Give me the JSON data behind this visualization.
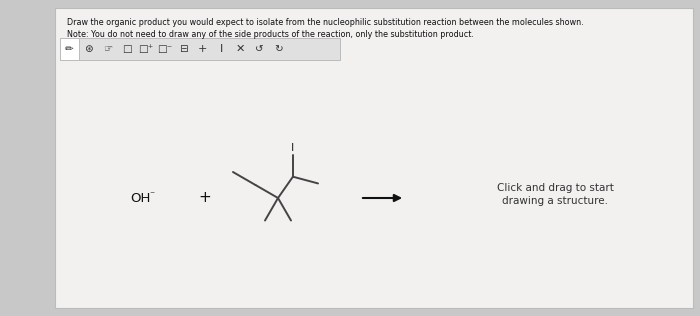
{
  "title_line1": "Draw the organic product you would expect to isolate from the nucleophilic substitution reaction between the molecules shown.",
  "title_line2": "Note: You do not need to draw any of the side products of the reaction, only the substitution product.",
  "bg_color": "#c8c8c8",
  "panel_color": "#ebebeb",
  "toolbar_bg": "#e0e0e0",
  "toolbar_border": "#bbbbbb",
  "text_color": "#111111",
  "bond_color": "#444444",
  "oh_text": "OH",
  "plus_text": "+",
  "arrow_color": "#111111",
  "click_line1": "Click and drag to start",
  "click_line2": "drawing a structure.",
  "title_fontsize": 5.8,
  "label_fontsize": 9.5,
  "click_fontsize": 7.5
}
